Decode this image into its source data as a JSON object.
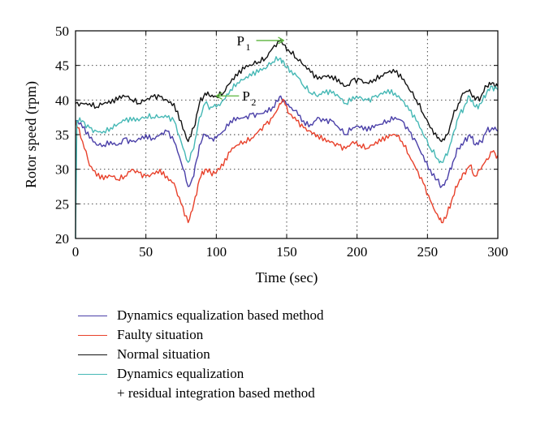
{
  "chart_data": {
    "type": "line",
    "xlabel": "Time (sec)",
    "ylabel": "Rotor speed (rpm)",
    "xlim": [
      0,
      300
    ],
    "ylim": [
      20,
      50
    ],
    "xticks": [
      0,
      50,
      100,
      150,
      200,
      250,
      300
    ],
    "yticks": [
      20,
      25,
      30,
      35,
      40,
      45,
      50
    ],
    "grid": true,
    "legend": "below",
    "series": [
      {
        "name": "Dynamics equalization based method",
        "color": "#4a3fa8",
        "points": [
          [
            0,
            37
          ],
          [
            5,
            36
          ],
          [
            10,
            34.5
          ],
          [
            15,
            33.5
          ],
          [
            20,
            33.5
          ],
          [
            25,
            34
          ],
          [
            30,
            33.5
          ],
          [
            35,
            34.5
          ],
          [
            40,
            34
          ],
          [
            45,
            34.5
          ],
          [
            50,
            35
          ],
          [
            55,
            34.5
          ],
          [
            60,
            35
          ],
          [
            65,
            35.5
          ],
          [
            70,
            34
          ],
          [
            75,
            31
          ],
          [
            80,
            27.5
          ],
          [
            84,
            29
          ],
          [
            88,
            33.5
          ],
          [
            92,
            35
          ],
          [
            96,
            34.5
          ],
          [
            100,
            34.5
          ],
          [
            105,
            35.5
          ],
          [
            110,
            37
          ],
          [
            115,
            37.5
          ],
          [
            120,
            37.5
          ],
          [
            125,
            38
          ],
          [
            130,
            38
          ],
          [
            135,
            38.5
          ],
          [
            140,
            39
          ],
          [
            145,
            40.5
          ],
          [
            148,
            40
          ],
          [
            152,
            39
          ],
          [
            157,
            38.5
          ],
          [
            162,
            37
          ],
          [
            167,
            36.5
          ],
          [
            172,
            37.5
          ],
          [
            177,
            37
          ],
          [
            182,
            37
          ],
          [
            187,
            36
          ],
          [
            192,
            35
          ],
          [
            197,
            36
          ],
          [
            202,
            36
          ],
          [
            207,
            35.5
          ],
          [
            212,
            36
          ],
          [
            217,
            36.5
          ],
          [
            222,
            37
          ],
          [
            227,
            37.5
          ],
          [
            232,
            37
          ],
          [
            237,
            35.5
          ],
          [
            242,
            34
          ],
          [
            247,
            32
          ],
          [
            252,
            30
          ],
          [
            257,
            28.5
          ],
          [
            260,
            27.5
          ],
          [
            264,
            28.5
          ],
          [
            268,
            31
          ],
          [
            272,
            33
          ],
          [
            276,
            34
          ],
          [
            280,
            35
          ],
          [
            284,
            33.5
          ],
          [
            288,
            34
          ],
          [
            292,
            35.5
          ],
          [
            296,
            36
          ],
          [
            300,
            35.5
          ]
        ]
      },
      {
        "name": "Faulty situation",
        "color": "#e8412b",
        "points": [
          [
            0,
            37
          ],
          [
            5,
            34
          ],
          [
            10,
            30.5
          ],
          [
            15,
            29
          ],
          [
            20,
            28.5
          ],
          [
            25,
            29
          ],
          [
            30,
            28.5
          ],
          [
            35,
            29
          ],
          [
            40,
            30
          ],
          [
            45,
            29.5
          ],
          [
            50,
            29
          ],
          [
            55,
            29.5
          ],
          [
            60,
            30
          ],
          [
            65,
            29
          ],
          [
            70,
            28
          ],
          [
            75,
            25
          ],
          [
            80,
            22.3
          ],
          [
            84,
            25
          ],
          [
            88,
            28.5
          ],
          [
            92,
            30
          ],
          [
            96,
            29.5
          ],
          [
            100,
            29.5
          ],
          [
            105,
            30.5
          ],
          [
            110,
            32.5
          ],
          [
            115,
            33.5
          ],
          [
            120,
            34
          ],
          [
            125,
            34.5
          ],
          [
            130,
            35.5
          ],
          [
            135,
            36.5
          ],
          [
            140,
            37.5
          ],
          [
            145,
            39.5
          ],
          [
            148,
            40
          ],
          [
            152,
            38
          ],
          [
            157,
            37
          ],
          [
            162,
            36
          ],
          [
            167,
            35.5
          ],
          [
            172,
            35
          ],
          [
            177,
            34.5
          ],
          [
            182,
            34
          ],
          [
            187,
            33.5
          ],
          [
            192,
            33
          ],
          [
            197,
            34
          ],
          [
            202,
            33.5
          ],
          [
            207,
            33
          ],
          [
            212,
            33.5
          ],
          [
            217,
            34
          ],
          [
            222,
            34.5
          ],
          [
            227,
            35
          ],
          [
            232,
            34
          ],
          [
            237,
            32
          ],
          [
            242,
            30
          ],
          [
            247,
            28
          ],
          [
            252,
            25.5
          ],
          [
            257,
            23.5
          ],
          [
            260,
            22.3
          ],
          [
            264,
            23.5
          ],
          [
            268,
            26
          ],
          [
            272,
            28
          ],
          [
            276,
            29.5
          ],
          [
            280,
            30.5
          ],
          [
            284,
            29
          ],
          [
            288,
            30
          ],
          [
            292,
            31.5
          ],
          [
            296,
            32.5
          ],
          [
            300,
            32
          ]
        ]
      },
      {
        "name": "Normal situation",
        "color": "#111111",
        "points": [
          [
            0,
            39.5
          ],
          [
            5,
            39.5
          ],
          [
            10,
            39.5
          ],
          [
            15,
            39
          ],
          [
            20,
            39.5
          ],
          [
            25,
            39.5
          ],
          [
            30,
            40
          ],
          [
            35,
            40.5
          ],
          [
            40,
            40
          ],
          [
            45,
            39.5
          ],
          [
            50,
            40
          ],
          [
            55,
            40.5
          ],
          [
            60,
            40.5
          ],
          [
            65,
            40
          ],
          [
            70,
            39.5
          ],
          [
            75,
            37
          ],
          [
            80,
            34
          ],
          [
            84,
            36
          ],
          [
            88,
            39.5
          ],
          [
            92,
            41
          ],
          [
            96,
            40.5
          ],
          [
            100,
            40.5
          ],
          [
            105,
            41
          ],
          [
            110,
            42.5
          ],
          [
            115,
            43.5
          ],
          [
            120,
            44.5
          ],
          [
            125,
            45
          ],
          [
            130,
            45.5
          ],
          [
            135,
            46
          ],
          [
            140,
            47.5
          ],
          [
            145,
            48.5
          ],
          [
            148,
            48
          ],
          [
            152,
            47
          ],
          [
            157,
            46
          ],
          [
            162,
            45
          ],
          [
            167,
            44
          ],
          [
            172,
            43
          ],
          [
            177,
            43.5
          ],
          [
            182,
            43.5
          ],
          [
            187,
            43
          ],
          [
            192,
            42
          ],
          [
            197,
            43
          ],
          [
            202,
            43
          ],
          [
            207,
            42.5
          ],
          [
            212,
            43
          ],
          [
            217,
            43.5
          ],
          [
            222,
            44
          ],
          [
            227,
            44
          ],
          [
            232,
            43
          ],
          [
            237,
            41.5
          ],
          [
            242,
            40
          ],
          [
            247,
            38
          ],
          [
            252,
            36
          ],
          [
            257,
            34.5
          ],
          [
            260,
            34
          ],
          [
            264,
            35
          ],
          [
            268,
            37.5
          ],
          [
            272,
            39.5
          ],
          [
            276,
            41
          ],
          [
            280,
            41.5
          ],
          [
            284,
            40
          ],
          [
            288,
            40.5
          ],
          [
            292,
            42
          ],
          [
            296,
            42.5
          ],
          [
            300,
            42
          ]
        ]
      },
      {
        "name": "Dynamics equalization\n+ residual integration based method",
        "color": "#45b8b5",
        "points": [
          [
            0,
            20
          ],
          [
            1,
            37
          ],
          [
            5,
            37
          ],
          [
            10,
            36
          ],
          [
            15,
            35.5
          ],
          [
            20,
            35.5
          ],
          [
            25,
            36
          ],
          [
            30,
            36.5
          ],
          [
            35,
            37
          ],
          [
            40,
            37
          ],
          [
            45,
            37
          ],
          [
            50,
            37.5
          ],
          [
            55,
            37.5
          ],
          [
            60,
            37.5
          ],
          [
            65,
            37.5
          ],
          [
            70,
            37
          ],
          [
            75,
            34
          ],
          [
            80,
            31
          ],
          [
            84,
            33
          ],
          [
            88,
            37.5
          ],
          [
            92,
            39.5
          ],
          [
            96,
            39
          ],
          [
            100,
            39
          ],
          [
            105,
            40
          ],
          [
            110,
            41.5
          ],
          [
            115,
            42.5
          ],
          [
            120,
            43
          ],
          [
            125,
            43.5
          ],
          [
            130,
            44
          ],
          [
            135,
            44.5
          ],
          [
            140,
            45.5
          ],
          [
            145,
            46
          ],
          [
            148,
            45.5
          ],
          [
            152,
            44
          ],
          [
            157,
            43.5
          ],
          [
            162,
            42
          ],
          [
            167,
            41
          ],
          [
            172,
            40.5
          ],
          [
            177,
            41
          ],
          [
            182,
            41
          ],
          [
            187,
            40.5
          ],
          [
            192,
            39.5
          ],
          [
            197,
            40.5
          ],
          [
            202,
            40.5
          ],
          [
            207,
            40
          ],
          [
            212,
            40.5
          ],
          [
            217,
            41
          ],
          [
            222,
            41.5
          ],
          [
            227,
            41
          ],
          [
            232,
            40
          ],
          [
            237,
            38.5
          ],
          [
            242,
            37
          ],
          [
            247,
            35
          ],
          [
            252,
            33
          ],
          [
            257,
            31.5
          ],
          [
            260,
            31
          ],
          [
            264,
            32
          ],
          [
            268,
            35
          ],
          [
            272,
            37.5
          ],
          [
            276,
            39
          ],
          [
            280,
            40.5
          ],
          [
            284,
            39
          ],
          [
            288,
            39.5
          ],
          [
            292,
            41
          ],
          [
            296,
            42
          ],
          [
            300,
            41.5
          ]
        ]
      }
    ],
    "annotations": [
      {
        "label": "P",
        "sub": "1",
        "x": 148,
        "y": 48.6,
        "color": "#5ab43c"
      },
      {
        "label": "P",
        "sub": "2",
        "x": 100,
        "y": 40.6,
        "color": "#5ab43c"
      }
    ]
  }
}
